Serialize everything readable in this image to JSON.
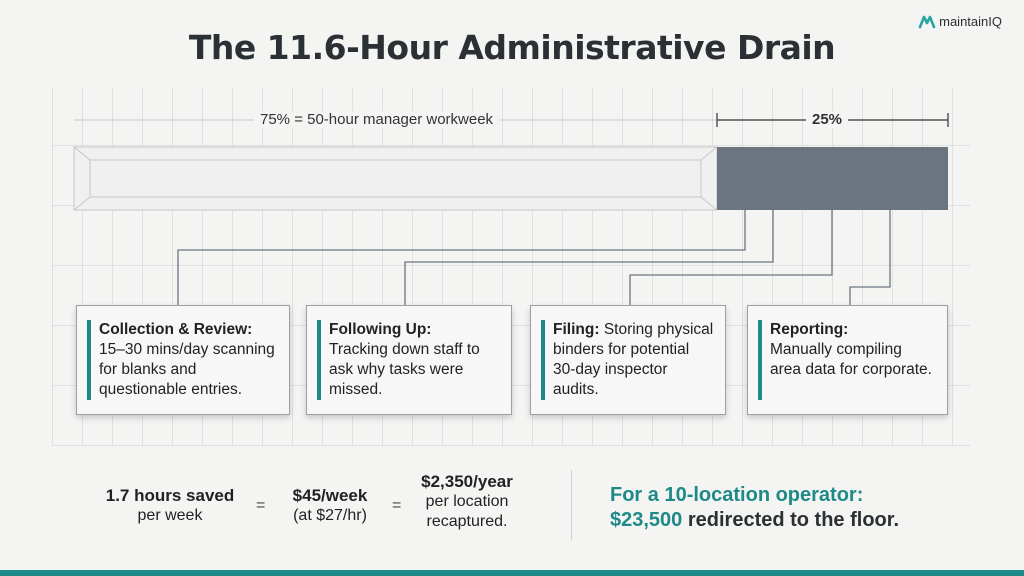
{
  "brand": {
    "logo_text": "maintainIQ",
    "accent_color": "#1e8a88"
  },
  "title": "The 11.6-Hour Administrative Drain",
  "bar": {
    "workweek_label": "75% = 50-hour manager workweek",
    "admin_label": "25%",
    "admin_fraction": 0.25,
    "admin_color": "#6b7580"
  },
  "tasks": [
    {
      "heading": "Collection & Review:",
      "text": "15–30 mins/day scanning for blanks and questionable entries."
    },
    {
      "heading": "Following Up:",
      "text": "Tracking down staff to ask why tasks were missed."
    },
    {
      "heading": "Filing:",
      "text": "Storing physical binders for potential 30-day inspector audits."
    },
    {
      "heading": "Reporting:",
      "text": "Manually compiling area data for corporate."
    }
  ],
  "equation": {
    "hours_bold": "1.7 hours saved",
    "hours_sub": "per week",
    "eq1": "=",
    "week_bold": "$45/week",
    "week_sub": "(at $27/hr)",
    "eq2": "=",
    "year_bold": "$2,350/year",
    "year_sub": "per location recaptured."
  },
  "callout": {
    "line1": "For a 10-location operator:",
    "amount": "$23,500",
    "line2_rest": "redirected to the floor."
  }
}
